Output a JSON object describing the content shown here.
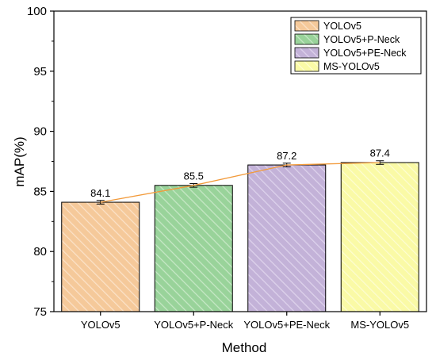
{
  "chart_data": {
    "type": "bar",
    "xlabel": "Method",
    "ylabel": "mAP(%)",
    "ylim": [
      75,
      100
    ],
    "yticks": [
      75,
      80,
      85,
      90,
      95,
      100
    ],
    "categories": [
      "YOLOv5",
      "YOLOv5+P-Neck",
      "YOLOv5+PE-Neck",
      "MS-YOLOv5"
    ],
    "values": [
      84.1,
      85.5,
      87.2,
      87.4
    ],
    "value_labels": [
      "84.1",
      "85.5",
      "87.2",
      "87.4"
    ],
    "error": [
      0.15,
      0.15,
      0.15,
      0.15
    ],
    "trend_line": true,
    "grid": false,
    "legend_position": "top-right",
    "legend": [
      "YOLOv5",
      "YOLOv5+P-Neck",
      "YOLOv5+PE-Neck",
      "MS-YOLOv5"
    ],
    "colors": [
      "#f5c99a",
      "#99d39a",
      "#c3b2d8",
      "#fafaa6"
    ],
    "hatch_colors": [
      "#fbe2c8",
      "#c7e8c6",
      "#ded3ec",
      "#fdfdd2"
    ],
    "trend_color": "#f29a3a"
  }
}
